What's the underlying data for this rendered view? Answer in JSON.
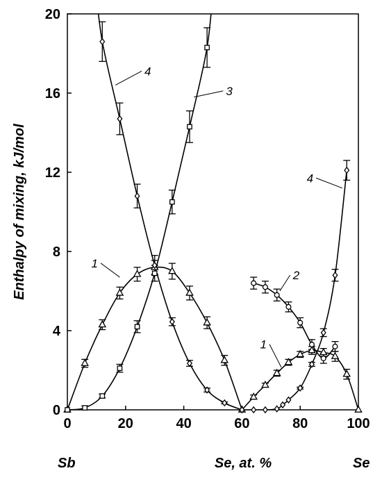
{
  "chart_data": {
    "type": "line",
    "title": "",
    "xlabel": "Se, at. %",
    "ylabel": "Enthalpy of mixing, kJ/mol",
    "end_labels": {
      "left": "Sb",
      "right": "Se"
    },
    "xlim": [
      0,
      100
    ],
    "ylim": [
      0,
      20
    ],
    "x_ticks": [
      0,
      20,
      40,
      60,
      80,
      100
    ],
    "y_ticks": [
      0,
      4,
      8,
      12,
      16,
      20
    ],
    "grid": false,
    "legend": "none",
    "series": [
      {
        "name": "1",
        "marker": "triangle",
        "points": [
          [
            0,
            0
          ],
          [
            6,
            2.35
          ],
          [
            12,
            4.3
          ],
          [
            18,
            5.9
          ],
          [
            24,
            6.85
          ],
          [
            30,
            7.2
          ],
          [
            36,
            7.0
          ],
          [
            42,
            5.9
          ],
          [
            48,
            4.4
          ],
          [
            54,
            2.5
          ],
          [
            60,
            0
          ],
          [
            64,
            0.65
          ],
          [
            68,
            1.25
          ],
          [
            72,
            1.85
          ],
          [
            76,
            2.4
          ],
          [
            80,
            2.8
          ],
          [
            84,
            3.0
          ],
          [
            88,
            2.9
          ],
          [
            92,
            2.7
          ],
          [
            96,
            1.8
          ],
          [
            100,
            0
          ]
        ],
        "errors": [
          0,
          0.2,
          0.25,
          0.3,
          0.35,
          0.35,
          0.4,
          0.35,
          0.3,
          0.25,
          0,
          0.1,
          0.1,
          0.15,
          0.15,
          0.15,
          0.2,
          0.2,
          0.25,
          0.25,
          0
        ]
      },
      {
        "name": "2",
        "marker": "circle",
        "points": [
          [
            64,
            6.4
          ],
          [
            68,
            6.2
          ],
          [
            72,
            5.8
          ],
          [
            76,
            5.2
          ],
          [
            80,
            4.4
          ],
          [
            84,
            3.3
          ],
          [
            88,
            2.6
          ],
          [
            92,
            3.2
          ]
        ],
        "errors": [
          0.3,
          0.3,
          0.3,
          0.25,
          0.25,
          0.25,
          0.25,
          0.25
        ]
      },
      {
        "name": "3",
        "marker": "square",
        "points": [
          [
            0,
            0
          ],
          [
            6,
            0.1
          ],
          [
            12,
            0.7
          ],
          [
            18,
            2.1
          ],
          [
            24,
            4.2
          ],
          [
            30,
            6.9
          ],
          [
            36,
            10.5
          ],
          [
            42,
            14.3
          ],
          [
            48,
            18.3
          ]
        ],
        "errors": [
          0,
          0.1,
          0.1,
          0.2,
          0.3,
          0.4,
          0.6,
          0.8,
          1.0
        ]
      },
      {
        "name": "4",
        "marker": "diamond",
        "points": [
          [
            12,
            18.6
          ],
          [
            18,
            14.7
          ],
          [
            24,
            10.8
          ],
          [
            30,
            7.3
          ],
          [
            36,
            4.45
          ],
          [
            42,
            2.35
          ],
          [
            48,
            1.0
          ],
          [
            54,
            0.35
          ],
          [
            60,
            0
          ],
          [
            64,
            0
          ],
          [
            68,
            0
          ],
          [
            72,
            0.05
          ],
          [
            74,
            0.25
          ],
          [
            76,
            0.5
          ],
          [
            80,
            1.1
          ],
          [
            84,
            2.3
          ],
          [
            88,
            3.9
          ],
          [
            92,
            6.8
          ],
          [
            96,
            12.1
          ]
        ],
        "errors": [
          1.0,
          0.8,
          0.6,
          0.5,
          0.2,
          0.15,
          0.1,
          0.05,
          0,
          0,
          0,
          0,
          0,
          0,
          0.05,
          0.1,
          0.2,
          0.3,
          0.5
        ]
      }
    ],
    "annotations": [
      {
        "text": "1",
        "series": "1"
      },
      {
        "text": "1",
        "series": "1"
      },
      {
        "text": "2",
        "series": "2"
      },
      {
        "text": "3",
        "series": "3"
      },
      {
        "text": "4",
        "series": "4"
      },
      {
        "text": "4",
        "series": "4"
      }
    ]
  }
}
